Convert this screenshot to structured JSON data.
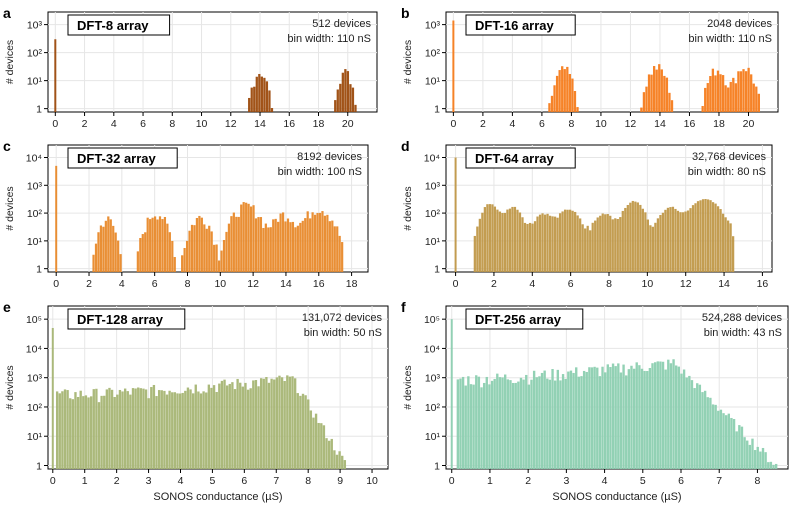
{
  "figure": {
    "shared_xlabel": "SONOS conductance (µS)",
    "shared_ylabel": "# devices"
  },
  "chart_data": [
    {
      "type": "bar",
      "panel": "a",
      "title": "DFT-8 array",
      "count_label": "512 devices",
      "bin_label": "bin width: 110 nS",
      "color": "#9c4a0c",
      "xlim": [
        -0.5,
        22
      ],
      "xticks": [
        0,
        2,
        4,
        6,
        8,
        10,
        12,
        14,
        16,
        18,
        20
      ],
      "yexp_min": 0,
      "yexp_max": 3,
      "show_xlabel": false,
      "peaks": [
        {
          "center": 0.0,
          "spread": 0.02,
          "height": 300
        },
        {
          "center": 14.0,
          "spread": 0.35,
          "height": 20
        },
        {
          "center": 19.8,
          "spread": 0.35,
          "height": 20
        }
      ],
      "floor": 0,
      "floor_end": 0,
      "spike": 300
    },
    {
      "type": "bar",
      "panel": "b",
      "title": "DFT-16 array",
      "count_label": "2048 devices",
      "bin_label": "bin width: 110 nS",
      "color": "#f57c1c",
      "xlim": [
        -0.5,
        22
      ],
      "xticks": [
        0,
        2,
        4,
        6,
        8,
        10,
        12,
        14,
        16,
        18,
        20
      ],
      "yexp_min": 0,
      "yexp_max": 3,
      "show_xlabel": false,
      "peaks": [
        {
          "center": 7.5,
          "spread": 0.4,
          "height": 25
        },
        {
          "center": 13.8,
          "spread": 0.45,
          "height": 30
        },
        {
          "center": 17.9,
          "spread": 0.45,
          "height": 25
        },
        {
          "center": 19.7,
          "spread": 0.45,
          "height": 30
        }
      ],
      "floor": 0,
      "floor_end": 0,
      "spike": 1400
    },
    {
      "type": "bar",
      "panel": "c",
      "title": "DFT-32 array",
      "count_label": "8192 devices",
      "bin_label": "bin width: 100 nS",
      "color": "#e8892a",
      "xlim": [
        -0.5,
        19
      ],
      "xticks": [
        0,
        2,
        4,
        6,
        8,
        10,
        12,
        14,
        16,
        18
      ],
      "yexp_min": 0,
      "yexp_max": 4,
      "show_xlabel": false,
      "peaks": [
        {
          "center": 3.1,
          "spread": 0.35,
          "height": 60
        },
        {
          "center": 6.1,
          "spread": 0.45,
          "height": 100
        },
        {
          "center": 8.8,
          "spread": 0.45,
          "height": 70
        },
        {
          "center": 11.6,
          "spread": 0.6,
          "height": 180
        },
        {
          "center": 13.9,
          "spread": 0.55,
          "height": 90
        },
        {
          "center": 16.0,
          "spread": 0.6,
          "height": 150
        }
      ],
      "floor": 0,
      "floor_end": 0,
      "spike": 5000
    },
    {
      "type": "bar",
      "panel": "d",
      "title": "DFT-64 array",
      "count_label": "32,768 devices",
      "bin_label": "bin width: 80 nS",
      "color": "#c09848",
      "xlim": [
        -0.5,
        16.5
      ],
      "xticks": [
        0,
        2,
        4,
        6,
        8,
        10,
        12,
        14,
        16
      ],
      "yexp_min": 0,
      "yexp_max": 4,
      "show_xlabel": false,
      "peaks": [
        {
          "center": 1.8,
          "spread": 0.35,
          "height": 200
        },
        {
          "center": 3.0,
          "spread": 0.35,
          "height": 150
        },
        {
          "center": 4.6,
          "spread": 0.4,
          "height": 80
        },
        {
          "center": 5.9,
          "spread": 0.4,
          "height": 120
        },
        {
          "center": 7.8,
          "spread": 0.4,
          "height": 80
        },
        {
          "center": 9.3,
          "spread": 0.4,
          "height": 250
        },
        {
          "center": 11.2,
          "spread": 0.4,
          "height": 150
        },
        {
          "center": 13.0,
          "spread": 0.6,
          "height": 300
        }
      ],
      "floor": 20,
      "floor_start": 1.5,
      "floor_end": 14.4,
      "spike": 10000
    },
    {
      "type": "bar",
      "panel": "e",
      "title": "DFT-128 array",
      "count_label": "131,072 devices",
      "bin_label": "bin width: 50 nS",
      "color": "#a7b574",
      "xlim": [
        -0.15,
        10.5
      ],
      "xticks": [
        0,
        1,
        2,
        3,
        4,
        5,
        6,
        7,
        8,
        9,
        10
      ],
      "yexp_min": 0,
      "yexp_max": 5,
      "show_xlabel": true,
      "peaks": [],
      "floor": 300,
      "floor_start": 0.1,
      "floor_end": 7.5,
      "rise_to": 1000,
      "tail_end": 9.2,
      "spike": 50000
    },
    {
      "type": "bar",
      "panel": "f",
      "title": "DFT-256 array",
      "count_label": "524,288 devices",
      "bin_label": "bin width: 43 nS",
      "color": "#8ccfb0",
      "xlim": [
        -0.15,
        8.8
      ],
      "xticks": [
        0,
        1,
        2,
        3,
        4,
        5,
        6,
        7,
        8
      ],
      "yexp_min": 0,
      "yexp_max": 5,
      "show_xlabel": true,
      "peaks": [],
      "floor": 1000,
      "floor_start": 0.1,
      "floor_end": 5.8,
      "rise_to": 3500,
      "tail_end": 8.5,
      "spike": 100000
    }
  ]
}
